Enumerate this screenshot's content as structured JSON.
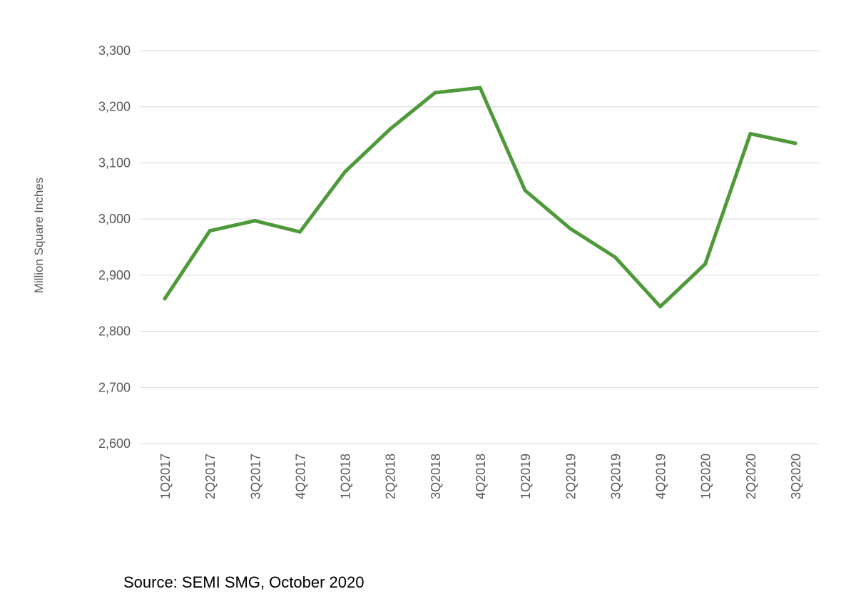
{
  "chart_data": {
    "type": "line",
    "title": "",
    "xlabel": "",
    "ylabel": "Million Square Inches",
    "ylim": [
      2600,
      3300
    ],
    "yticks": [
      2600,
      2700,
      2800,
      2900,
      3000,
      3100,
      3200,
      3300
    ],
    "ytick_labels": [
      "2,600",
      "2,700",
      "2,800",
      "2,900",
      "3,000",
      "3,100",
      "3,200",
      "3,300"
    ],
    "grid": true,
    "categories": [
      "1Q2017",
      "2Q2017",
      "3Q2017",
      "4Q2017",
      "1Q2018",
      "2Q2018",
      "3Q2018",
      "4Q2018",
      "1Q2019",
      "2Q2019",
      "3Q2019",
      "4Q2019",
      "1Q2020",
      "2Q2020",
      "3Q2020"
    ],
    "series": [
      {
        "color": "#4e9a3a",
        "values": [
          2858,
          2979,
          2997,
          2977,
          3084,
          3160,
          3225,
          3234,
          3051,
          2983,
          2932,
          2844,
          2920,
          3152,
          3135
        ]
      }
    ]
  },
  "source": "Source: SEMI SMG, October 2020"
}
